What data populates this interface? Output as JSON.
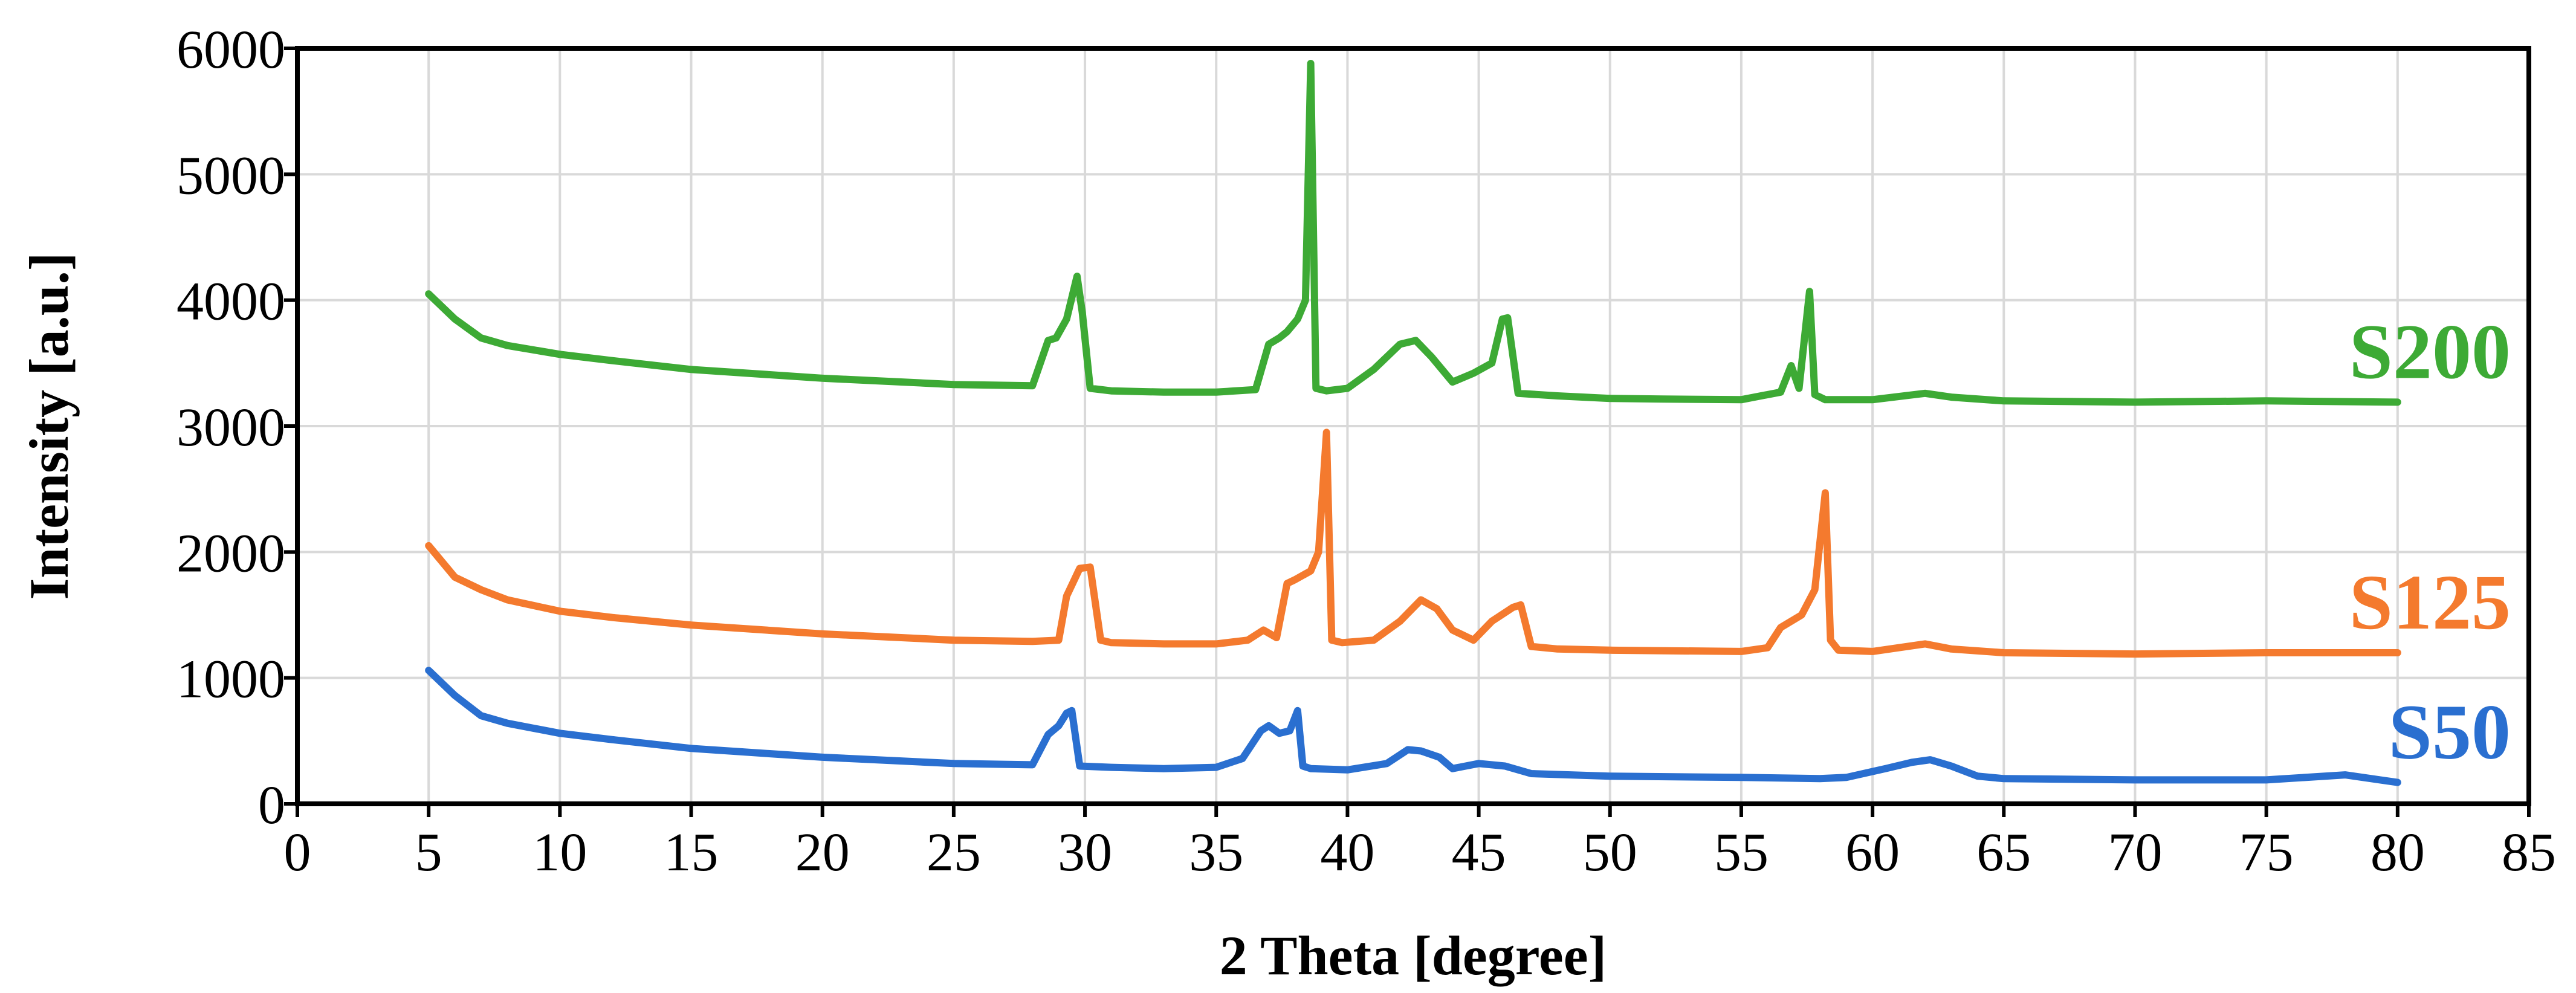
{
  "chart_data": {
    "type": "line",
    "title": "",
    "xlabel": "2 Theta [degree]",
    "ylabel": "Intensity [a.u.]",
    "xlim": [
      0,
      85
    ],
    "ylim": [
      0,
      6000
    ],
    "xticks": [
      0,
      5,
      10,
      15,
      20,
      25,
      30,
      35,
      40,
      45,
      50,
      55,
      60,
      65,
      70,
      75,
      80,
      85
    ],
    "yticks": [
      0,
      1000,
      2000,
      3000,
      4000,
      5000,
      6000
    ],
    "grid": true,
    "series": [
      {
        "name": "S200",
        "color": "#3daa35",
        "x": [
          5,
          6,
          7,
          8,
          10,
          12,
          15,
          20,
          25,
          28,
          28.6,
          28.9,
          29.3,
          29.7,
          29.9,
          30.2,
          31,
          33,
          35,
          36.5,
          37,
          37.4,
          37.7,
          38.1,
          38.4,
          38.6,
          38.8,
          39.2,
          40,
          41,
          42,
          42.6,
          43.2,
          44,
          44.8,
          45.5,
          45.9,
          46.1,
          46.5,
          48,
          50,
          52,
          55,
          56.5,
          56.9,
          57.2,
          57.6,
          57.8,
          58.2,
          60,
          62,
          63,
          65,
          70,
          75,
          80
        ],
        "values": [
          4050,
          3850,
          3700,
          3640,
          3570,
          3520,
          3450,
          3380,
          3330,
          3320,
          3680,
          3700,
          3850,
          4190,
          3900,
          3300,
          3280,
          3270,
          3270,
          3290,
          3650,
          3700,
          3750,
          3850,
          4000,
          5880,
          3300,
          3280,
          3300,
          3450,
          3650,
          3680,
          3550,
          3350,
          3420,
          3500,
          3850,
          3860,
          3260,
          3240,
          3220,
          3215,
          3210,
          3270,
          3480,
          3300,
          4070,
          3250,
          3210,
          3210,
          3260,
          3230,
          3200,
          3190,
          3200,
          3190
        ]
      },
      {
        "name": "S125",
        "color": "#f47a2e",
        "x": [
          5,
          6,
          7,
          8,
          10,
          12,
          15,
          20,
          25,
          28,
          29,
          29.3,
          29.8,
          30.2,
          30.6,
          31,
          33,
          35,
          36.2,
          36.8,
          37.3,
          37.7,
          38,
          38.6,
          38.9,
          39.2,
          39.4,
          39.8,
          41,
          42,
          42.8,
          43.4,
          44,
          44.8,
          45.5,
          46.3,
          46.6,
          47,
          48,
          50,
          55,
          56,
          56.5,
          57.3,
          57.8,
          58.2,
          58.4,
          58.7,
          60,
          62,
          63,
          65,
          70,
          75,
          80
        ],
        "values": [
          2050,
          1800,
          1700,
          1620,
          1530,
          1480,
          1420,
          1350,
          1300,
          1290,
          1300,
          1650,
          1870,
          1880,
          1300,
          1280,
          1270,
          1270,
          1300,
          1380,
          1320,
          1750,
          1780,
          1850,
          2000,
          2950,
          1300,
          1280,
          1300,
          1450,
          1620,
          1550,
          1380,
          1300,
          1450,
          1560,
          1580,
          1250,
          1230,
          1220,
          1210,
          1240,
          1400,
          1500,
          1700,
          2470,
          1300,
          1220,
          1210,
          1270,
          1230,
          1200,
          1190,
          1200,
          1200
        ]
      },
      {
        "name": "S50",
        "color": "#2a6fd0",
        "x": [
          5,
          6,
          7,
          8,
          10,
          12,
          15,
          20,
          25,
          28,
          28.6,
          29,
          29.3,
          29.5,
          29.8,
          31,
          33,
          35,
          36,
          36.7,
          37,
          37.4,
          37.8,
          38.1,
          38.3,
          38.6,
          40,
          41.5,
          42.3,
          42.8,
          43.5,
          44,
          45,
          46,
          47,
          50,
          55,
          58,
          59,
          60.5,
          61.5,
          62.2,
          63,
          64,
          65,
          70,
          75,
          78,
          80
        ],
        "values": [
          1060,
          860,
          700,
          640,
          560,
          510,
          440,
          370,
          320,
          310,
          550,
          620,
          720,
          740,
          300,
          290,
          280,
          290,
          360,
          580,
          620,
          560,
          580,
          740,
          300,
          280,
          270,
          320,
          430,
          420,
          370,
          280,
          320,
          300,
          240,
          220,
          210,
          200,
          210,
          280,
          330,
          350,
          300,
          220,
          200,
          190,
          190,
          230,
          170
        ]
      }
    ]
  }
}
